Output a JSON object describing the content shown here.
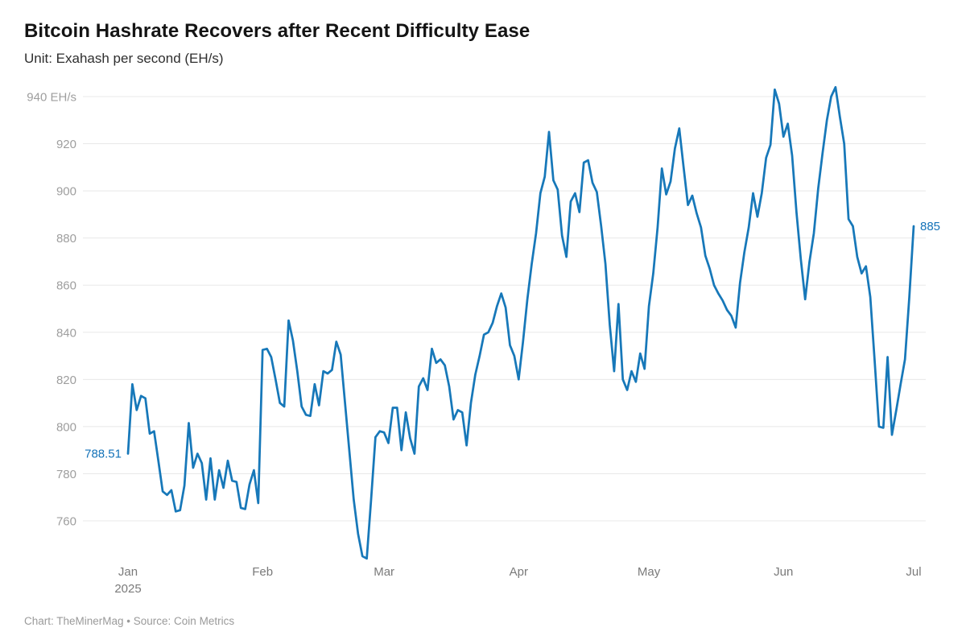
{
  "header": {
    "title": "Bitcoin Hashrate Recovers after Recent Difficulty Ease",
    "subtitle": "Unit: Exahash per second (EH/s)"
  },
  "footer": {
    "text": "Chart: TheMinerMag • Source: Coin Metrics"
  },
  "colors": {
    "line": "#1778b9",
    "value_label": "#1372b8",
    "grid": "#e8e8e8",
    "y_tick_text": "#9e9e9e",
    "x_tick_text": "#7a7a7a"
  },
  "chart_data": {
    "type": "line",
    "title": "Bitcoin Hashrate Recovers after Recent Difficulty Ease",
    "unit": "EH/s",
    "grid": true,
    "legend": false,
    "x_axis": {
      "start_date": "2025-01-01",
      "end_date": "2025-07-01",
      "frequency": "daily",
      "tick_labels": [
        "Jan",
        "Feb",
        "Mar",
        "Apr",
        "May",
        "Jun",
        "Jul"
      ],
      "year_label": "2025",
      "month_day_offsets": [
        0,
        31,
        59,
        90,
        120,
        151,
        181
      ]
    },
    "y_axis": {
      "ticks": [
        760,
        780,
        800,
        820,
        840,
        860,
        880,
        900,
        920,
        940
      ],
      "top_tick_label": "940 EH/s",
      "ylim_visible": [
        744,
        944
      ]
    },
    "annotations": {
      "first_point_label": "788.51",
      "last_point_label": "885"
    },
    "series": [
      {
        "name": "Bitcoin hashrate (EH/s)",
        "values": [
          788.51,
          818,
          807,
          813,
          812,
          797,
          798,
          785.5,
          772.5,
          771,
          773,
          764,
          764.5,
          775,
          801.5,
          782.5,
          788.5,
          784.5,
          769,
          786.5,
          769,
          781.5,
          774,
          785.5,
          777,
          776.5,
          765.5,
          765,
          775.5,
          781.5,
          767.5,
          832.5,
          833,
          829.5,
          820,
          810,
          808.5,
          845,
          836.5,
          823.5,
          808.5,
          805,
          804.5,
          818,
          809,
          823.5,
          822.5,
          824,
          836,
          830.5,
          810,
          789.5,
          769,
          754.5,
          745,
          744,
          769,
          795.5,
          798,
          797.5,
          793,
          808,
          808,
          790,
          806,
          795,
          788.5,
          817,
          820.5,
          815.5,
          833,
          827,
          828.5,
          826,
          817,
          803,
          807,
          806,
          792,
          810,
          822,
          830,
          839,
          840,
          844,
          851,
          856.5,
          850.5,
          834.5,
          830,
          820,
          836,
          854,
          869,
          882,
          899,
          906,
          925,
          904.5,
          900.5,
          881,
          872,
          895.5,
          899,
          891,
          912,
          913,
          903.5,
          899.5,
          885,
          869,
          843,
          823.5,
          852,
          820,
          815.5,
          823.5,
          819,
          831,
          824.5,
          851,
          865,
          884.5,
          909.5,
          898.5,
          904,
          918,
          926.5,
          910,
          894,
          898,
          890.5,
          884.5,
          872.5,
          867,
          860,
          856.5,
          853.5,
          849.5,
          847,
          842,
          861,
          874,
          884.5,
          899,
          889,
          899,
          914,
          919.5,
          943,
          937,
          923,
          928.5,
          915,
          891,
          871,
          854,
          870,
          882,
          901,
          916,
          930,
          940,
          944,
          931.5,
          920,
          888,
          885,
          872,
          865,
          868,
          855,
          828,
          800,
          799.5,
          829.5,
          796.5,
          807,
          818,
          828.5,
          855,
          885
        ]
      }
    ]
  }
}
